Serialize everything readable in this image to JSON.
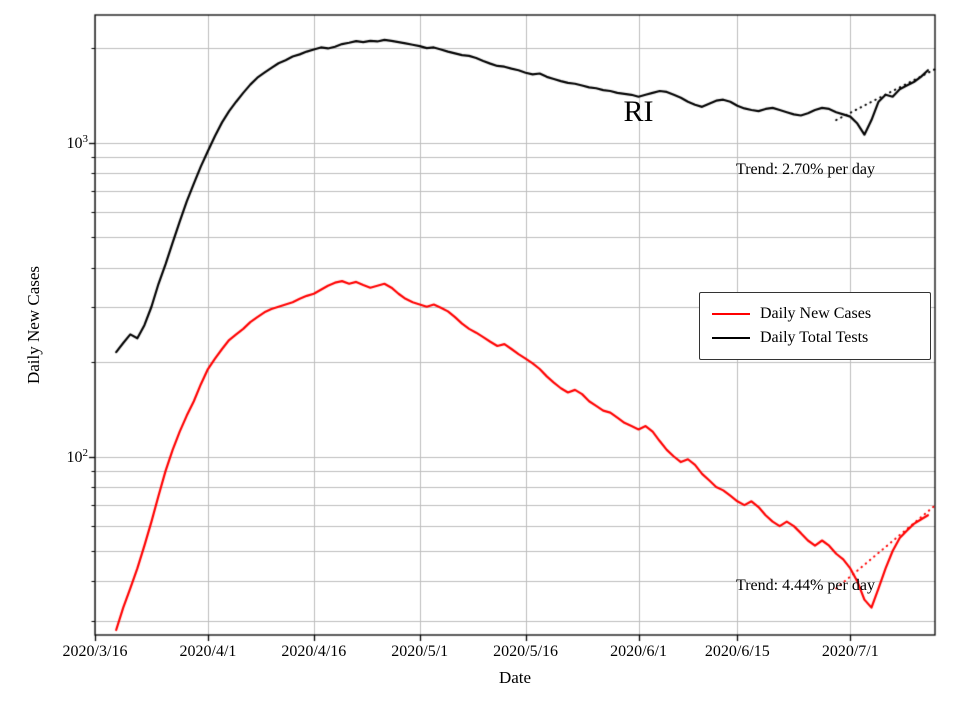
{
  "figure": {
    "background": "#ffffff",
    "grid_color": "#bdbdbd",
    "spine_color": "#000000"
  },
  "chart_data": {
    "type": "line",
    "title": "",
    "xlabel": "Date",
    "ylabel": "Daily New Cases",
    "grid": true,
    "legend_position": "center right",
    "x_axis": {
      "start": "2020/3/16",
      "end": "2020/7/13",
      "ticks": [
        "2020/3/16",
        "2020/4/1",
        "2020/4/16",
        "2020/5/1",
        "2020/5/16",
        "2020/6/1",
        "2020/6/15",
        "2020/7/1"
      ]
    },
    "y_axis": {
      "scale": "log",
      "min": 27,
      "max": 2550,
      "ticks": [
        {
          "value": 100,
          "base": "10",
          "exp": "2"
        },
        {
          "value": 1000,
          "base": "10",
          "exp": "3"
        }
      ]
    },
    "series": [
      {
        "name": "Daily New Cases",
        "color": "#ff0000",
        "x_start": "2020/3/19",
        "x_step_days": 1,
        "values": [
          28,
          33,
          38,
          44,
          52,
          62,
          75,
          90,
          105,
          120,
          135,
          150,
          170,
          190,
          205,
          220,
          235,
          245,
          255,
          268,
          278,
          288,
          295,
          300,
          305,
          310,
          318,
          325,
          330,
          340,
          350,
          358,
          362,
          355,
          360,
          352,
          345,
          350,
          355,
          345,
          330,
          318,
          310,
          305,
          300,
          305,
          298,
          290,
          278,
          265,
          255,
          248,
          240,
          232,
          225,
          228,
          220,
          212,
          205,
          198,
          190,
          180,
          172,
          165,
          160,
          163,
          158,
          150,
          145,
          140,
          138,
          133,
          128,
          125,
          122,
          125,
          120,
          112,
          105,
          100,
          96,
          98,
          94,
          88,
          84,
          80,
          78,
          75,
          72,
          70,
          72,
          69,
          65,
          62,
          60,
          62,
          60,
          57,
          54,
          52,
          54,
          52,
          49,
          47,
          44,
          40,
          35,
          33,
          38,
          44,
          50,
          55,
          58,
          61,
          63,
          65
        ]
      },
      {
        "name": "Daily Total Tests",
        "color": "#000000",
        "x_start": "2020/3/19",
        "x_step_days": 1,
        "values": [
          215,
          230,
          245,
          238,
          262,
          300,
          355,
          410,
          480,
          560,
          650,
          740,
          840,
          940,
          1050,
          1160,
          1260,
          1350,
          1440,
          1530,
          1610,
          1670,
          1730,
          1790,
          1830,
          1880,
          1910,
          1950,
          1980,
          2010,
          1995,
          2020,
          2060,
          2080,
          2105,
          2090,
          2110,
          2100,
          2125,
          2110,
          2090,
          2070,
          2050,
          2030,
          2000,
          2010,
          1980,
          1950,
          1925,
          1900,
          1890,
          1860,
          1820,
          1785,
          1755,
          1745,
          1720,
          1700,
          1670,
          1650,
          1660,
          1620,
          1595,
          1570,
          1550,
          1540,
          1520,
          1500,
          1490,
          1470,
          1460,
          1440,
          1430,
          1420,
          1400,
          1420,
          1440,
          1460,
          1450,
          1420,
          1390,
          1350,
          1320,
          1300,
          1330,
          1360,
          1370,
          1350,
          1310,
          1285,
          1270,
          1260,
          1280,
          1290,
          1270,
          1250,
          1230,
          1220,
          1240,
          1270,
          1290,
          1280,
          1250,
          1230,
          1210,
          1150,
          1060,
          1180,
          1350,
          1420,
          1400,
          1480,
          1520,
          1560,
          1620,
          1700
        ]
      }
    ],
    "trend_lines": [
      {
        "series": "Daily New Cases",
        "label": "Trend: 4.44% per day",
        "pct_per_day": 4.44,
        "start": "2020/6/29",
        "start_value": 38,
        "end": "2020/7/13",
        "color": "#ff0000"
      },
      {
        "series": "Daily Total Tests",
        "label": "Trend: 2.70% per day",
        "pct_per_day": 2.7,
        "start": "2020/6/29",
        "start_value": 1180,
        "end": "2020/7/13",
        "color": "#000000"
      }
    ],
    "annotations": [
      {
        "text": "RI",
        "x": "2020/6/1",
        "y": 1250
      }
    ]
  }
}
